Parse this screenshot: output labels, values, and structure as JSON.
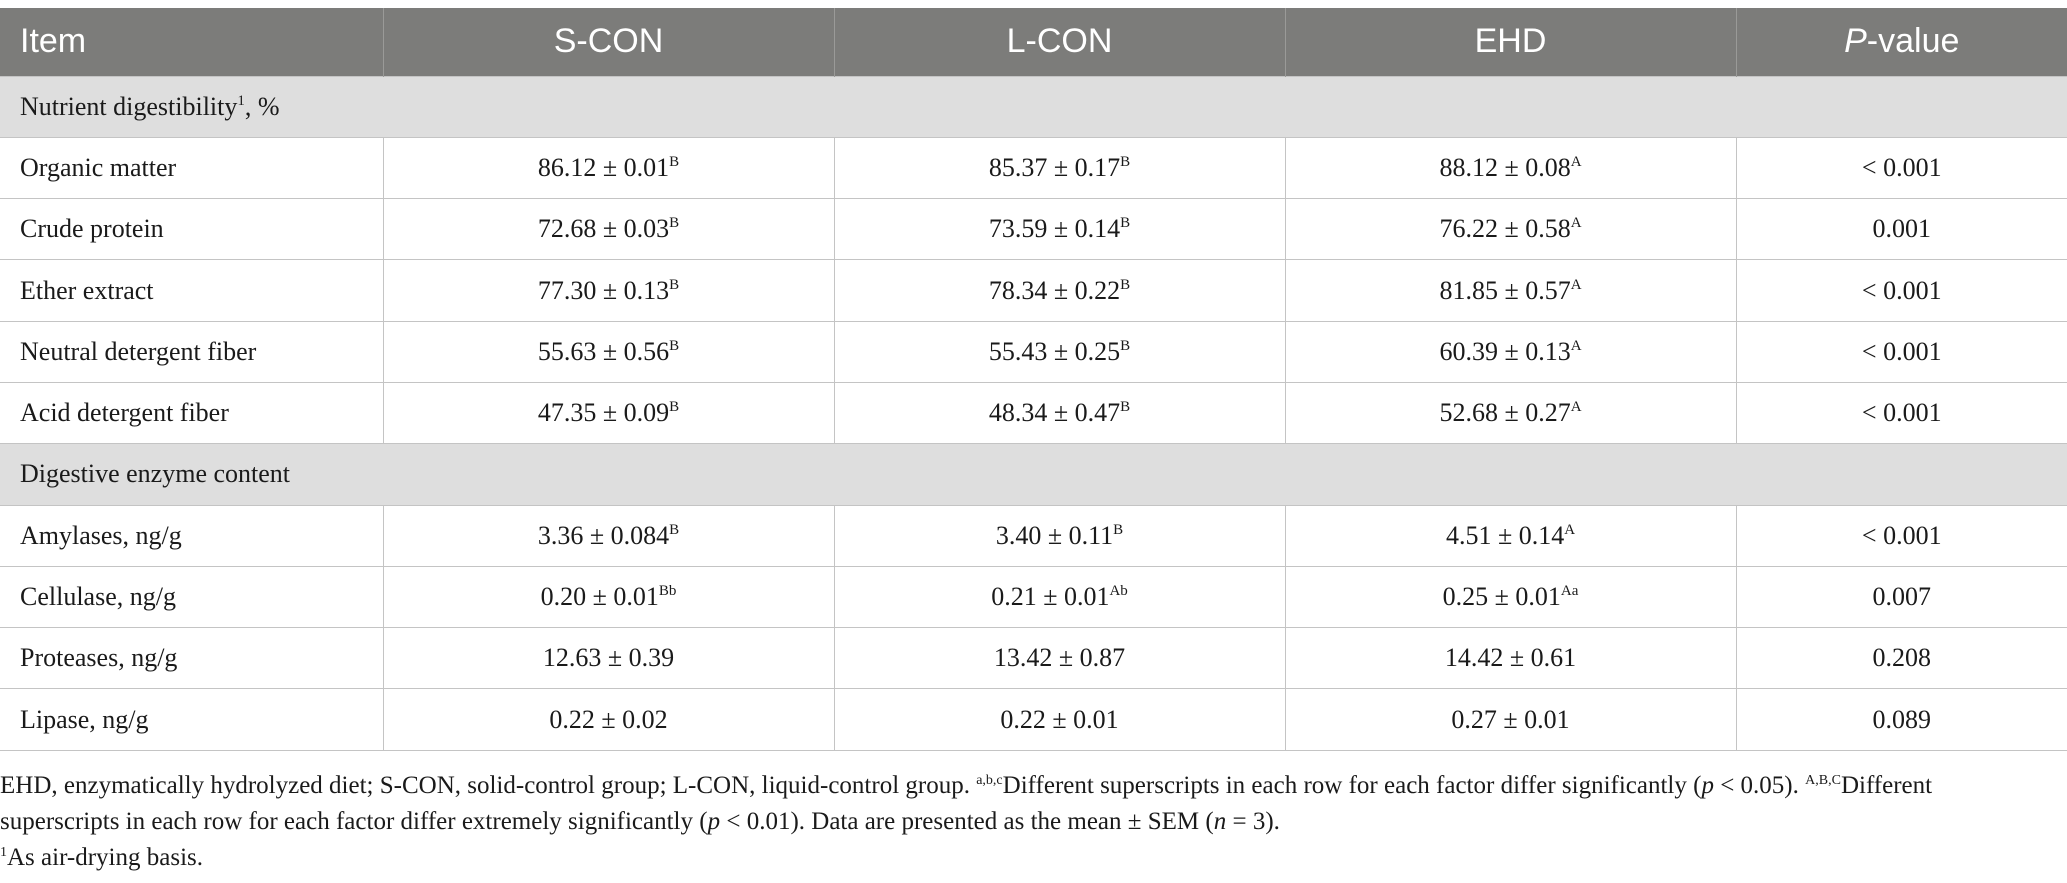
{
  "header": [
    "Item",
    "S-CON",
    "L-CON",
    "EHD",
    "-value"
  ],
  "header_p": "P",
  "section1": {
    "label": "Nutrient digestibility",
    "sup": "1",
    "suffix": ", %"
  },
  "section2": {
    "label": "Digestive enzyme content"
  },
  "rows1": [
    {
      "item": "Organic matter",
      "s": "86.12 ± 0.01",
      "s_sup": "B",
      "l": "85.37 ± 0.17",
      "l_sup": "B",
      "e": "88.12 ± 0.08",
      "e_sup": "A",
      "p": "< 0.001"
    },
    {
      "item": "Crude protein",
      "s": "72.68 ± 0.03",
      "s_sup": "B",
      "l": "73.59 ± 0.14",
      "l_sup": "B",
      "e": "76.22 ± 0.58",
      "e_sup": "A",
      "p": "0.001"
    },
    {
      "item": "Ether extract",
      "s": "77.30 ± 0.13",
      "s_sup": "B",
      "l": "78.34 ± 0.22",
      "l_sup": "B",
      "e": "81.85 ± 0.57",
      "e_sup": "A",
      "p": "< 0.001"
    },
    {
      "item": "Neutral detergent fiber",
      "s": "55.63 ± 0.56",
      "s_sup": "B",
      "l": "55.43 ± 0.25",
      "l_sup": "B",
      "e": "60.39 ± 0.13",
      "e_sup": "A",
      "p": "< 0.001"
    },
    {
      "item": "Acid detergent fiber",
      "s": "47.35 ± 0.09",
      "s_sup": "B",
      "l": "48.34 ± 0.47",
      "l_sup": "B",
      "e": "52.68 ± 0.27",
      "e_sup": "A",
      "p": "< 0.001"
    }
  ],
  "rows2": [
    {
      "item": "Amylases, ng/g",
      "s": "3.36 ± 0.084",
      "s_sup": "B",
      "l": "3.40 ± 0.11",
      "l_sup": "B",
      "e": "4.51 ± 0.14",
      "e_sup": "A",
      "p": "< 0.001"
    },
    {
      "item": "Cellulase, ng/g",
      "s": "0.20 ± 0.01",
      "s_sup": "Bb",
      "l": "0.21 ± 0.01",
      "l_sup": "Ab",
      "e": "0.25 ± 0.01",
      "e_sup": "Aa",
      "p": "0.007"
    },
    {
      "item": "Proteases, ng/g",
      "s": "12.63 ± 0.39",
      "s_sup": "",
      "l": "13.42 ± 0.87",
      "l_sup": "",
      "e": "14.42 ± 0.61",
      "e_sup": "",
      "p": "0.208"
    },
    {
      "item": "Lipase, ng/g",
      "s": "0.22 ± 0.02",
      "s_sup": "",
      "l": "0.22 ± 0.01",
      "l_sup": "",
      "e": "0.27 ± 0.01",
      "e_sup": "",
      "p": "0.089"
    }
  ],
  "notes": {
    "line1_a": "EHD, enzymatically hydrolyzed diet; S-CON, solid-control group; L-CON, liquid-control group. ",
    "line1_sup1": "a,b,c",
    "line1_b": "Different superscripts in each row for each factor differ significantly (",
    "line1_p": "p",
    "line1_c": " < 0.05). ",
    "line1_sup2": "A,B,C",
    "line1_d": "Different",
    "line2_a": "superscripts in each row for each factor differ extremely significantly (",
    "line2_p": "p",
    "line2_b": " < 0.01). Data are presented as the mean ± SEM (",
    "line2_n": "n",
    "line2_c": " = 3).",
    "line3_sup": "1",
    "line3": "As air-drying basis."
  },
  "colors": {
    "header_bg": "#7c7c7a",
    "section_bg": "#dedede",
    "border": "#c4c4c4"
  }
}
